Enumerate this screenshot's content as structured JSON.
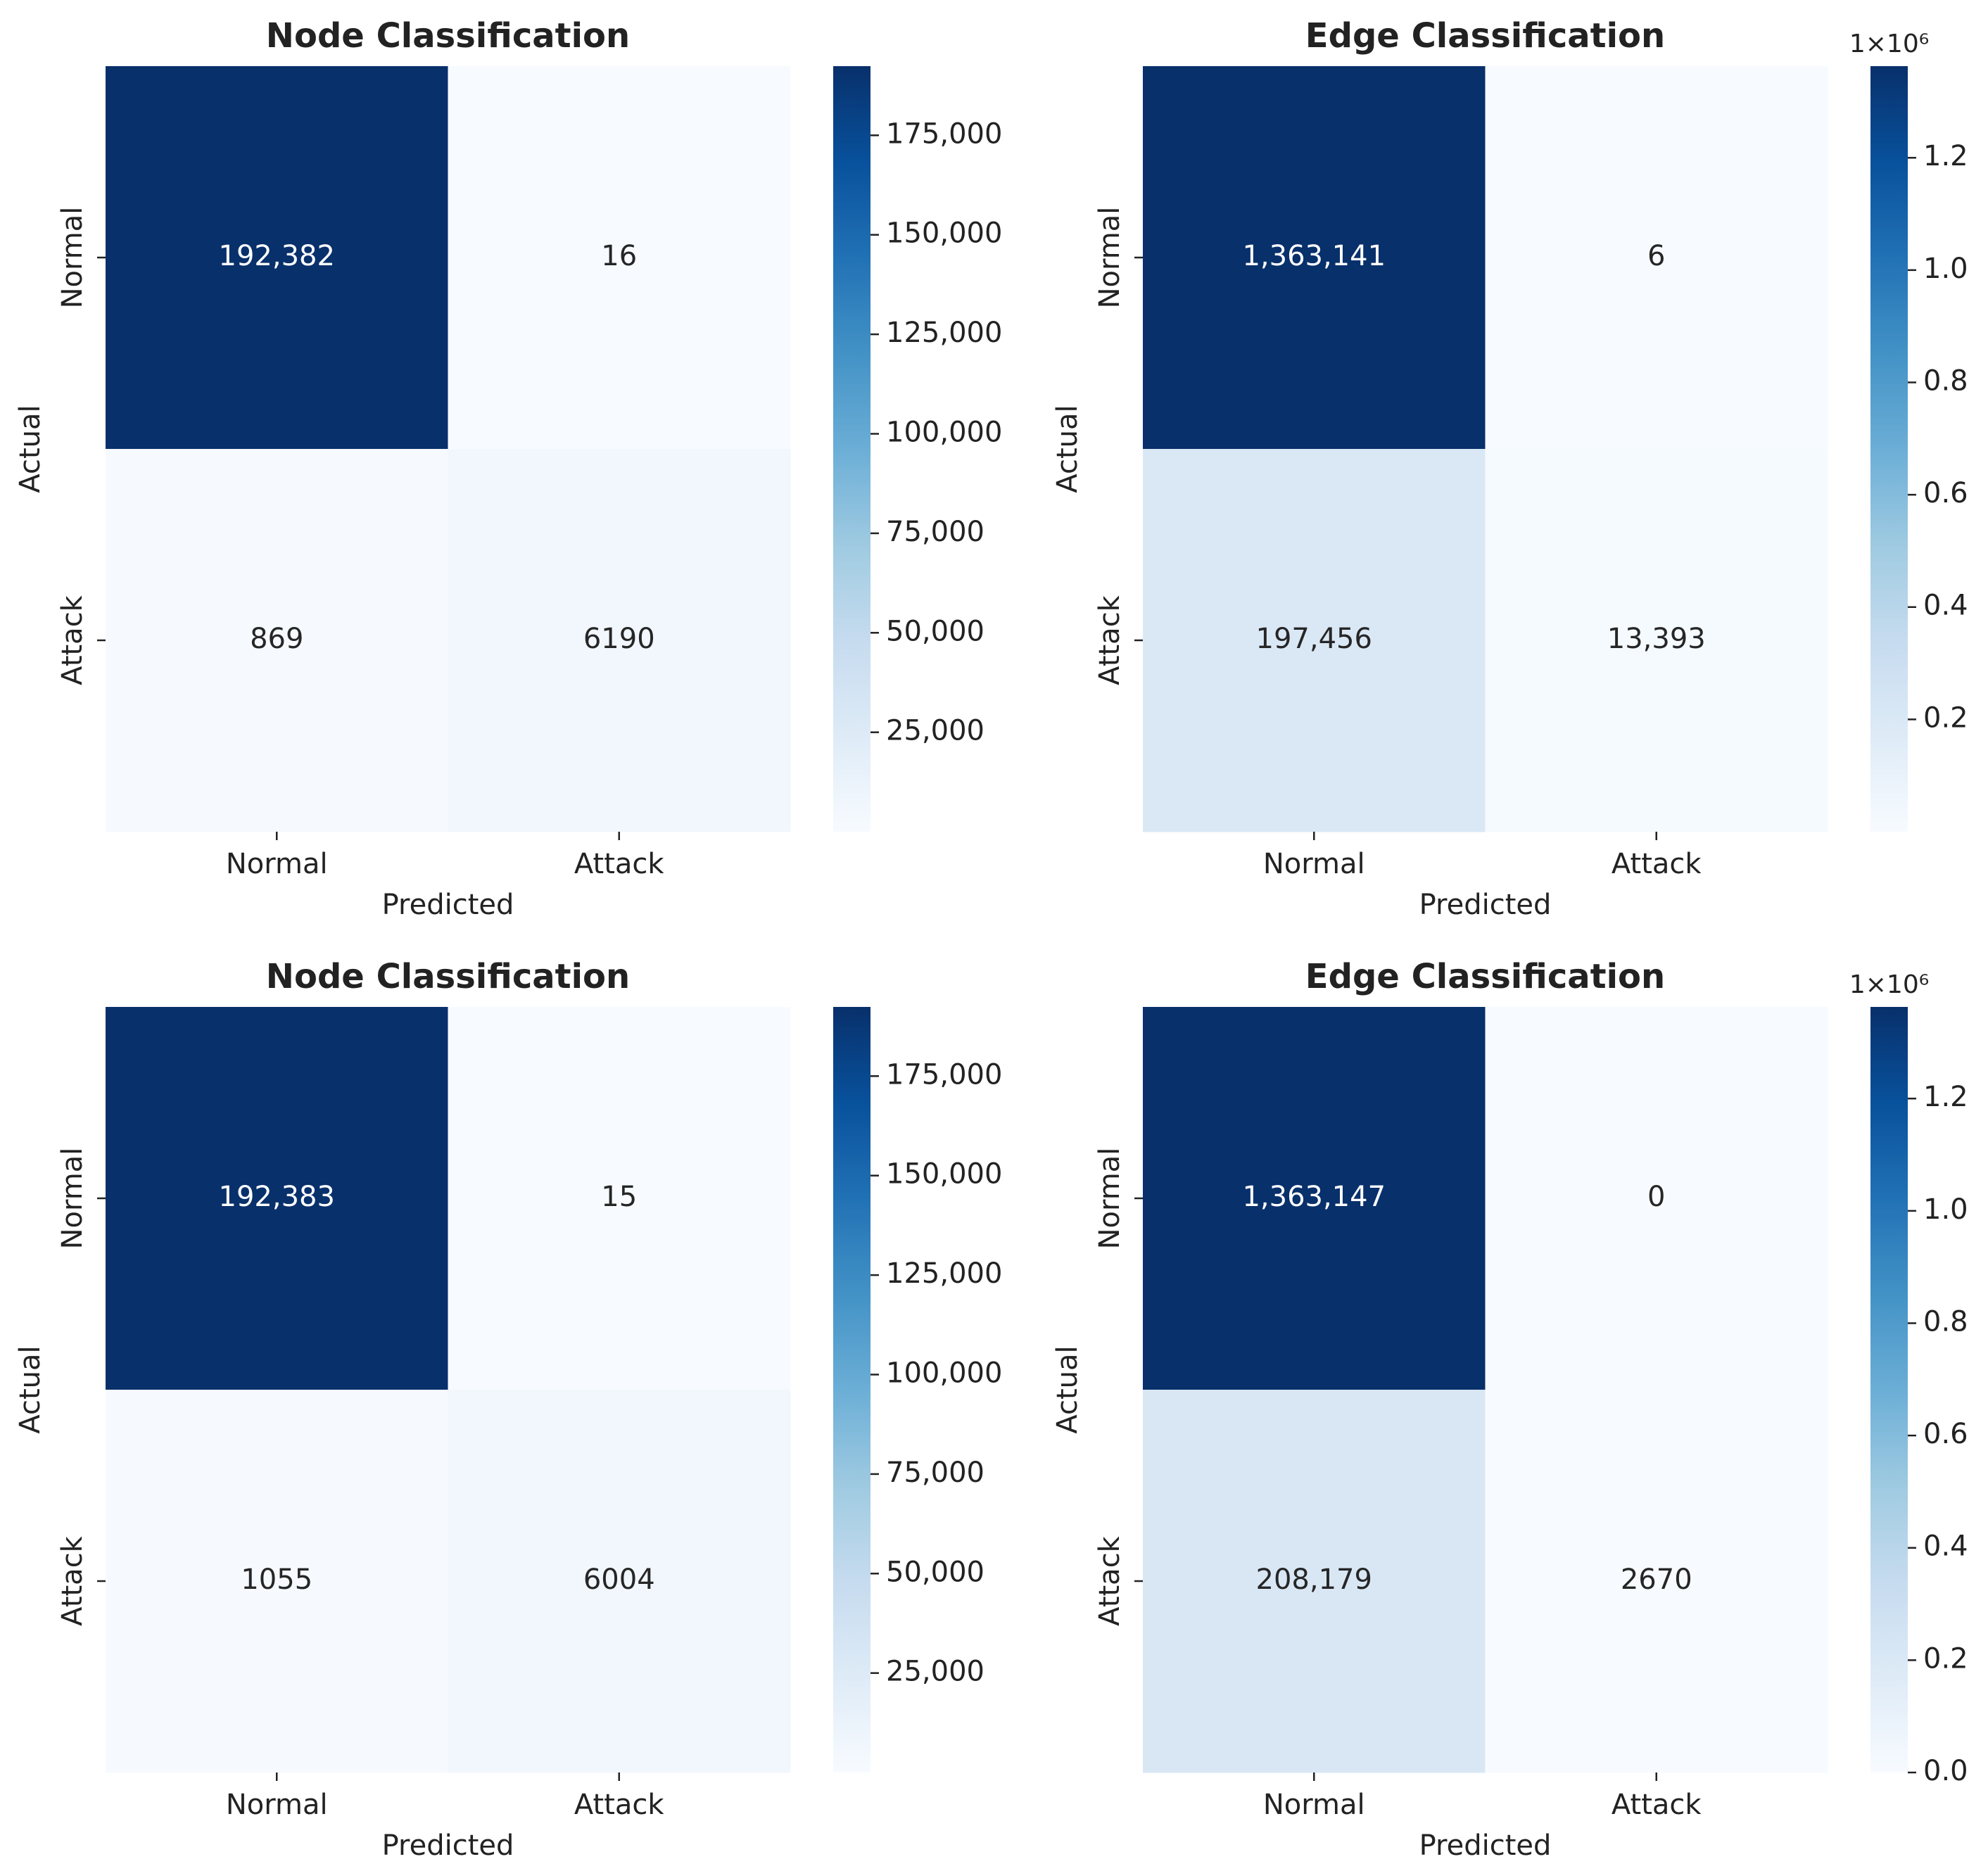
{
  "chart_data": [
    {
      "type": "heatmap",
      "title": "Node Classification",
      "xlabel": "Predicted",
      "ylabel": "Actual",
      "x_categories": [
        "Normal",
        "Attack"
      ],
      "y_categories": [
        "Normal",
        "Attack"
      ],
      "values": [
        [
          192382,
          16
        ],
        [
          869,
          6190
        ]
      ],
      "value_labels": [
        [
          "192,382",
          "16"
        ],
        [
          "869",
          "6190"
        ]
      ],
      "colormap": "Blues",
      "zlim": [
        16,
        192382
      ],
      "zticks": [
        {
          "value": 25000,
          "label": "25,000"
        },
        {
          "value": 50000,
          "label": "50,000"
        },
        {
          "value": 75000,
          "label": "75,000"
        },
        {
          "value": 100000,
          "label": "100,000"
        },
        {
          "value": 125000,
          "label": "125,000"
        },
        {
          "value": 150000,
          "label": "150,000"
        },
        {
          "value": 175000,
          "label": "175,000"
        }
      ]
    },
    {
      "type": "heatmap",
      "title": "Edge Classification",
      "xlabel": "Predicted",
      "ylabel": "Actual",
      "x_categories": [
        "Normal",
        "Attack"
      ],
      "y_categories": [
        "Normal",
        "Attack"
      ],
      "values": [
        [
          1363141,
          6
        ],
        [
          197456,
          13393
        ]
      ],
      "value_labels": [
        [
          "1,363,141",
          "6"
        ],
        [
          "197,456",
          "13,393"
        ]
      ],
      "colormap": "Blues",
      "zlim": [
        6,
        1363141
      ],
      "zticks_multiplier_label": "1×10⁶",
      "zticks": [
        {
          "value": 200000,
          "label": "0.2"
        },
        {
          "value": 400000,
          "label": "0.4"
        },
        {
          "value": 600000,
          "label": "0.6"
        },
        {
          "value": 800000,
          "label": "0.8"
        },
        {
          "value": 1000000,
          "label": "1.0"
        },
        {
          "value": 1200000,
          "label": "1.2"
        }
      ]
    },
    {
      "type": "heatmap",
      "title": "Node Classification",
      "xlabel": "Predicted",
      "ylabel": "Actual",
      "x_categories": [
        "Normal",
        "Attack"
      ],
      "y_categories": [
        "Normal",
        "Attack"
      ],
      "values": [
        [
          192383,
          15
        ],
        [
          1055,
          6004
        ]
      ],
      "value_labels": [
        [
          "192,383",
          "15"
        ],
        [
          "1055",
          "6004"
        ]
      ],
      "colormap": "Blues",
      "zlim": [
        15,
        192383
      ],
      "zticks": [
        {
          "value": 25000,
          "label": "25,000"
        },
        {
          "value": 50000,
          "label": "50,000"
        },
        {
          "value": 75000,
          "label": "75,000"
        },
        {
          "value": 100000,
          "label": "100,000"
        },
        {
          "value": 125000,
          "label": "125,000"
        },
        {
          "value": 150000,
          "label": "150,000"
        },
        {
          "value": 175000,
          "label": "175,000"
        }
      ]
    },
    {
      "type": "heatmap",
      "title": "Edge Classification",
      "xlabel": "Predicted",
      "ylabel": "Actual",
      "x_categories": [
        "Normal",
        "Attack"
      ],
      "y_categories": [
        "Normal",
        "Attack"
      ],
      "values": [
        [
          1363147,
          0
        ],
        [
          208179,
          2670
        ]
      ],
      "value_labels": [
        [
          "1,363,147",
          "0"
        ],
        [
          "208,179",
          "2670"
        ]
      ],
      "colormap": "Blues",
      "zlim": [
        0,
        1363147
      ],
      "zticks_multiplier_label": "1×10⁶",
      "zticks": [
        {
          "value": 0,
          "label": "0.0"
        },
        {
          "value": 200000,
          "label": "0.2"
        },
        {
          "value": 400000,
          "label": "0.4"
        },
        {
          "value": 600000,
          "label": "0.6"
        },
        {
          "value": 800000,
          "label": "0.8"
        },
        {
          "value": 1000000,
          "label": "1.0"
        },
        {
          "value": 1200000,
          "label": "1.2"
        }
      ]
    }
  ]
}
